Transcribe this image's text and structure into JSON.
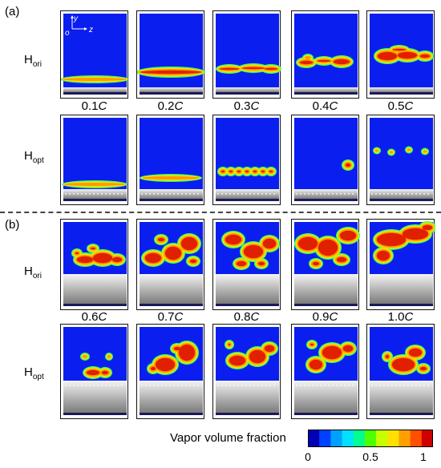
{
  "panels": {
    "a": {
      "label": "(a)",
      "times": [
        "0.1",
        "0.2",
        "0.3",
        "0.4",
        "0.5"
      ]
    },
    "b": {
      "label": "(b)",
      "times": [
        "0.6",
        "0.7",
        "0.8",
        "0.9",
        "1.0"
      ]
    }
  },
  "time_unit": "C",
  "rows": {
    "ori": {
      "base": "H",
      "sub": "ori"
    },
    "opt": {
      "base": "H",
      "sub": "opt"
    }
  },
  "axes_inset": {
    "y": "y",
    "o": "o",
    "z": "z"
  },
  "colorbar": {
    "title": "Vapor volume fraction",
    "ticks": [
      "0",
      "0.5",
      "1"
    ],
    "colors": [
      "#0000b4",
      "#0040ff",
      "#00a0ff",
      "#00e0ff",
      "#00ff90",
      "#50ff00",
      "#c8ff00",
      "#ffe000",
      "#ffa000",
      "#ff5000",
      "#d00000"
    ]
  },
  "colors": {
    "liquid": "#0a1ef0",
    "vapor_core": "#e02000",
    "vapor_mid": "#ff9a00",
    "vapor_edge": "#40ff60",
    "wall_top": "#f4f4f4",
    "wall_bottom": "#7a7a7a"
  }
}
